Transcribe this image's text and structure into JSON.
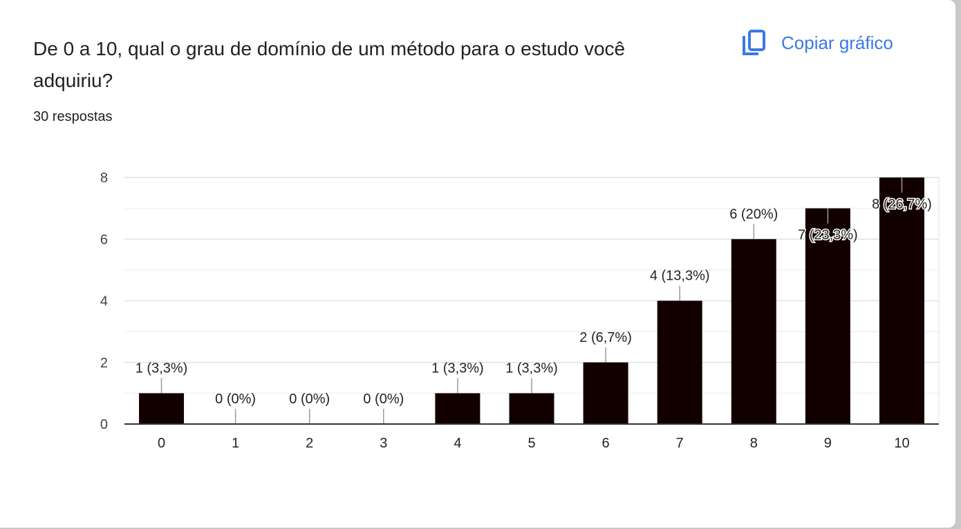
{
  "header": {
    "title": "De 0 a 10, qual o grau de domínio de um método para o estudo você adquiriu?",
    "responses": "30 respostas",
    "copy_label": "Copiar gráfico"
  },
  "colors": {
    "bar": "#120000",
    "accent": "#3b78e7"
  },
  "chart_data": {
    "type": "bar",
    "categories": [
      "0",
      "1",
      "2",
      "3",
      "4",
      "5",
      "6",
      "7",
      "8",
      "9",
      "10"
    ],
    "values": [
      1,
      0,
      0,
      0,
      1,
      1,
      2,
      4,
      6,
      7,
      8
    ],
    "labels": [
      "1 (3,3%)",
      "0 (0%)",
      "0 (0%)",
      "0 (0%)",
      "1 (3,3%)",
      "1 (3,3%)",
      "2 (6,7%)",
      "4 (13,3%)",
      "6 (20%)",
      "7 (23,3%)",
      "8 (26,7%)"
    ],
    "yticks": [
      "0",
      "2",
      "4",
      "6",
      "8"
    ],
    "ylim": [
      0,
      8
    ],
    "grid": true
  }
}
